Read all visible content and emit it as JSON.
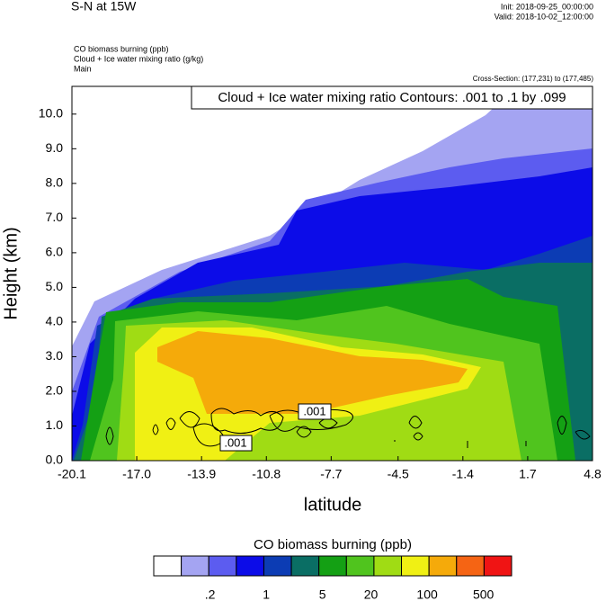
{
  "header": {
    "title": "S-N at 15W",
    "init": "Init: 2018-09-25_00:00:00",
    "valid": "Valid: 2018-10-02_12:00:00"
  },
  "chart_data": {
    "type": "contour",
    "fields": [
      "CO biomass burning   (ppb)",
      "Cloud + Ice water mixing ratio   (g/kg)",
      "Main"
    ],
    "cross_section": "Cross-Section: (177,231) to (177,485)",
    "contour_info": "Cloud + Ice water mixing ratio Contours: .001 to .1 by .099",
    "contour_labels": [
      ".001",
      ".001"
    ],
    "x_label": "latitude",
    "y_label": "Height (km)",
    "xlim": [
      -20.1,
      4.8
    ],
    "xticks": [
      -20.1,
      {
        "value": -17,
        "label": "-17.0"
      },
      -13.9,
      -10.8,
      -7.7,
      -4.5,
      -1.4,
      1.7,
      4.8
    ],
    "ylim": [
      0,
      10.8
    ],
    "yticks": [
      {
        "value": 0,
        "label": "0.0"
      },
      {
        "value": 1,
        "label": "1.0"
      },
      {
        "value": 2,
        "label": "2.0"
      },
      {
        "value": 3,
        "label": "3.0"
      },
      {
        "value": 4,
        "label": "4.0"
      },
      {
        "value": 5,
        "label": "5.0"
      },
      {
        "value": 6,
        "label": "6.0"
      },
      {
        "value": 7,
        "label": "7.0"
      },
      {
        "value": 8,
        "label": "8.0"
      },
      {
        "value": 9,
        "label": "9.0"
      },
      {
        "value": 10,
        "label": "10.0"
      }
    ],
    "colorbar": {
      "title": "CO biomass burning  (ppb)",
      "colors": [
        "#ffffff",
        "#a4a4f2",
        "#5c5cf0",
        "#0c0ce8",
        "#0c3cb4",
        "#0a6e64",
        "#14a014",
        "#50c41e",
        "#a0dc14",
        "#f0f014",
        "#f5aa0a",
        "#f56414",
        "#f01414"
      ],
      "log": true,
      "lim": [
        0.04,
        1120
      ],
      "ticks": [
        {
          "value": 0.2,
          "label": ".2"
        },
        1,
        5,
        20,
        100,
        500
      ]
    }
  }
}
